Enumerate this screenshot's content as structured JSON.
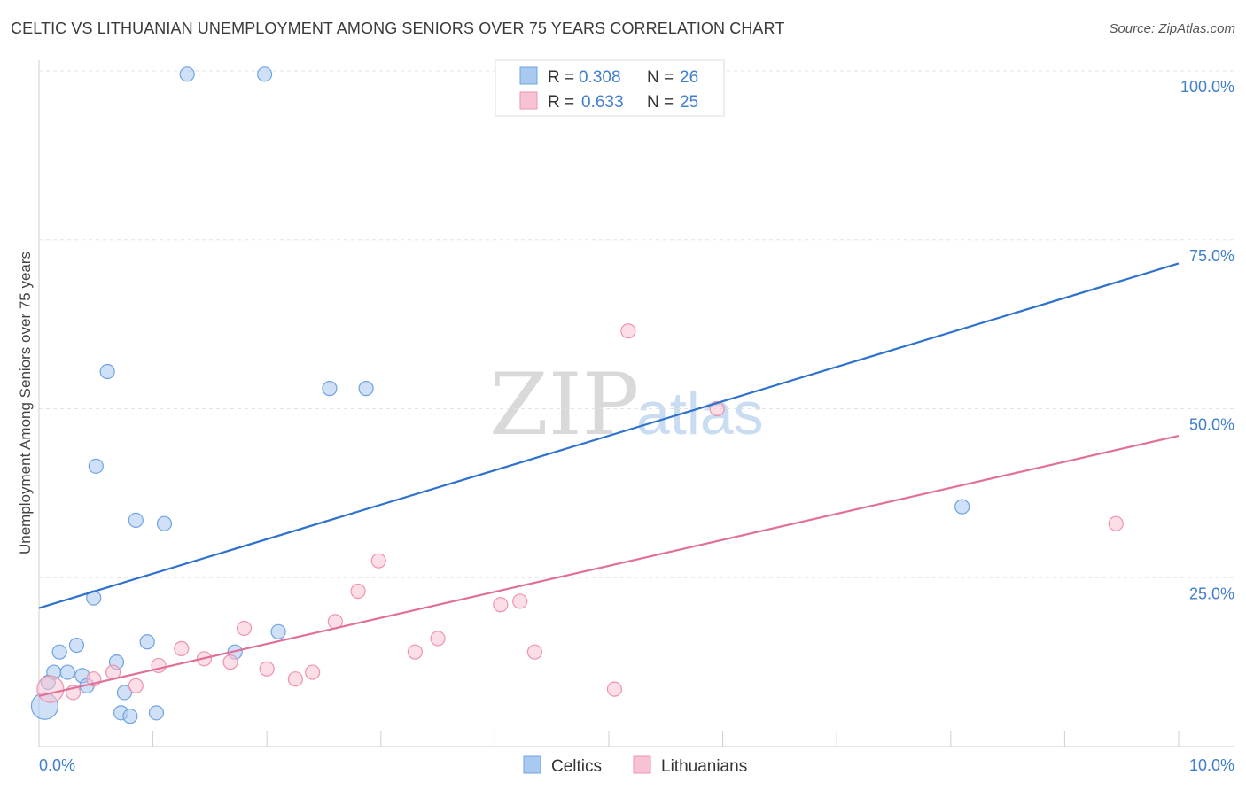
{
  "header": {
    "title": "CELTIC VS LITHUANIAN UNEMPLOYMENT AMONG SENIORS OVER 75 YEARS CORRELATION CHART",
    "source": "Source: ZipAtlas.com"
  },
  "watermark": {
    "zip": "ZIP",
    "atlas": "atlas"
  },
  "legend": {
    "r_label": "R =",
    "n_label": "N =",
    "series": [
      {
        "r": "0.308",
        "n": "26"
      },
      {
        "r": "0.633",
        "n": "25"
      }
    ]
  },
  "chart_data": {
    "type": "scatter",
    "title": "CELTIC VS LITHUANIAN UNEMPLOYMENT AMONG SENIORS OVER 75 YEARS CORRELATION CHART",
    "xlabel": "",
    "ylabel": "Unemployment Among Seniors over 75 years",
    "xlim": [
      0,
      10
    ],
    "ylim": [
      0,
      100
    ],
    "x_tick_labels": [
      "0.0%",
      "10.0%"
    ],
    "y_ticks": [
      25,
      50,
      75,
      100
    ],
    "y_tick_labels": [
      "25.0%",
      "50.0%",
      "75.0%",
      "100.0%"
    ],
    "grid": true,
    "legend_position": "top-center",
    "series": [
      {
        "name": "Celtics",
        "color": "#a9c9f0",
        "edge_color": "#6fa3e0",
        "line_color": "#2f72cc",
        "points": [
          {
            "x": 0.05,
            "y": 6,
            "big": true
          },
          {
            "x": 0.08,
            "y": 9.5
          },
          {
            "x": 0.13,
            "y": 11
          },
          {
            "x": 0.18,
            "y": 14
          },
          {
            "x": 0.25,
            "y": 11
          },
          {
            "x": 0.33,
            "y": 15
          },
          {
            "x": 0.38,
            "y": 10.5
          },
          {
            "x": 0.42,
            "y": 9
          },
          {
            "x": 0.48,
            "y": 22
          },
          {
            "x": 0.5,
            "y": 41.5
          },
          {
            "x": 0.6,
            "y": 55.5
          },
          {
            "x": 0.68,
            "y": 12.5
          },
          {
            "x": 0.72,
            "y": 5
          },
          {
            "x": 0.75,
            "y": 8
          },
          {
            "x": 0.8,
            "y": 4.5
          },
          {
            "x": 0.85,
            "y": 33.5
          },
          {
            "x": 0.95,
            "y": 15.5
          },
          {
            "x": 1.03,
            "y": 5
          },
          {
            "x": 1.1,
            "y": 33
          },
          {
            "x": 1.3,
            "y": 99.5
          },
          {
            "x": 1.72,
            "y": 14
          },
          {
            "x": 1.98,
            "y": 99.5
          },
          {
            "x": 2.1,
            "y": 17
          },
          {
            "x": 2.55,
            "y": 53
          },
          {
            "x": 2.87,
            "y": 53
          },
          {
            "x": 8.1,
            "y": 35.5
          }
        ],
        "trend": {
          "x": [
            0,
            10
          ],
          "y": [
            20.5,
            71.5
          ]
        }
      },
      {
        "name": "Lithuanians",
        "color": "#f7c3d2",
        "edge_color": "#ee93ae",
        "line_color": "#e07098",
        "points": [
          {
            "x": 0.1,
            "y": 8.5,
            "big": true
          },
          {
            "x": 0.3,
            "y": 8
          },
          {
            "x": 0.48,
            "y": 10
          },
          {
            "x": 0.65,
            "y": 11
          },
          {
            "x": 0.85,
            "y": 9
          },
          {
            "x": 1.05,
            "y": 12
          },
          {
            "x": 1.25,
            "y": 14.5
          },
          {
            "x": 1.45,
            "y": 13
          },
          {
            "x": 1.68,
            "y": 12.5
          },
          {
            "x": 1.8,
            "y": 17.5
          },
          {
            "x": 2.0,
            "y": 11.5
          },
          {
            "x": 2.25,
            "y": 10
          },
          {
            "x": 2.4,
            "y": 11
          },
          {
            "x": 2.6,
            "y": 18.5
          },
          {
            "x": 2.8,
            "y": 23
          },
          {
            "x": 2.98,
            "y": 27.5
          },
          {
            "x": 3.3,
            "y": 14
          },
          {
            "x": 3.5,
            "y": 16
          },
          {
            "x": 4.05,
            "y": 21
          },
          {
            "x": 4.22,
            "y": 21.5
          },
          {
            "x": 4.35,
            "y": 14
          },
          {
            "x": 5.05,
            "y": 8.5
          },
          {
            "x": 5.17,
            "y": 61.5
          },
          {
            "x": 5.95,
            "y": 50
          },
          {
            "x": 9.45,
            "y": 33
          }
        ],
        "trend": {
          "x": [
            0,
            10
          ],
          "y": [
            7.5,
            46
          ]
        }
      }
    ]
  }
}
